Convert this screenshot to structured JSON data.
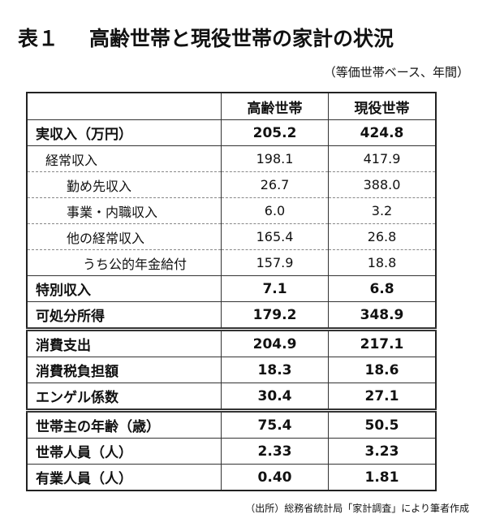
{
  "title": {
    "number": "表１",
    "text": "高齢世帯と現役世帯の家計の状況"
  },
  "subtitle": "（等価世帯ベース、年間）",
  "table": {
    "headers": [
      "",
      "高齢世帯",
      "現役世帯"
    ],
    "rows": [
      {
        "label": "実収入（万円）",
        "elderly": "205.2",
        "working": "424.8"
      },
      {
        "label": "経常収入",
        "elderly": "198.1",
        "working": "417.9"
      },
      {
        "label": "勤め先収入",
        "elderly": "26.7",
        "working": "388.0"
      },
      {
        "label": "事業・内職収入",
        "elderly": "6.0",
        "working": "3.2"
      },
      {
        "label": "他の経常収入",
        "elderly": "165.4",
        "working": "26.8"
      },
      {
        "label": "うち公的年金給付",
        "elderly": "157.9",
        "working": "18.8"
      },
      {
        "label": "特別収入",
        "elderly": "7.1",
        "working": "6.8"
      },
      {
        "label": "可処分所得",
        "elderly": "179.2",
        "working": "348.9"
      },
      {
        "label": "消費支出",
        "elderly": "204.9",
        "working": "217.1"
      },
      {
        "label": "消費税負担額",
        "elderly": "18.3",
        "working": "18.6"
      },
      {
        "label": "エンゲル係数",
        "elderly": "30.4",
        "working": "27.1"
      },
      {
        "label": "世帯主の年齢（歳）",
        "elderly": "75.4",
        "working": "50.5"
      },
      {
        "label": "世帯人員（人）",
        "elderly": "2.33",
        "working": "3.23"
      },
      {
        "label": "有業人員（人）",
        "elderly": "0.40",
        "working": "1.81"
      }
    ]
  },
  "footer": "（出所）総務省統計局「家計調査」により筆者作成"
}
